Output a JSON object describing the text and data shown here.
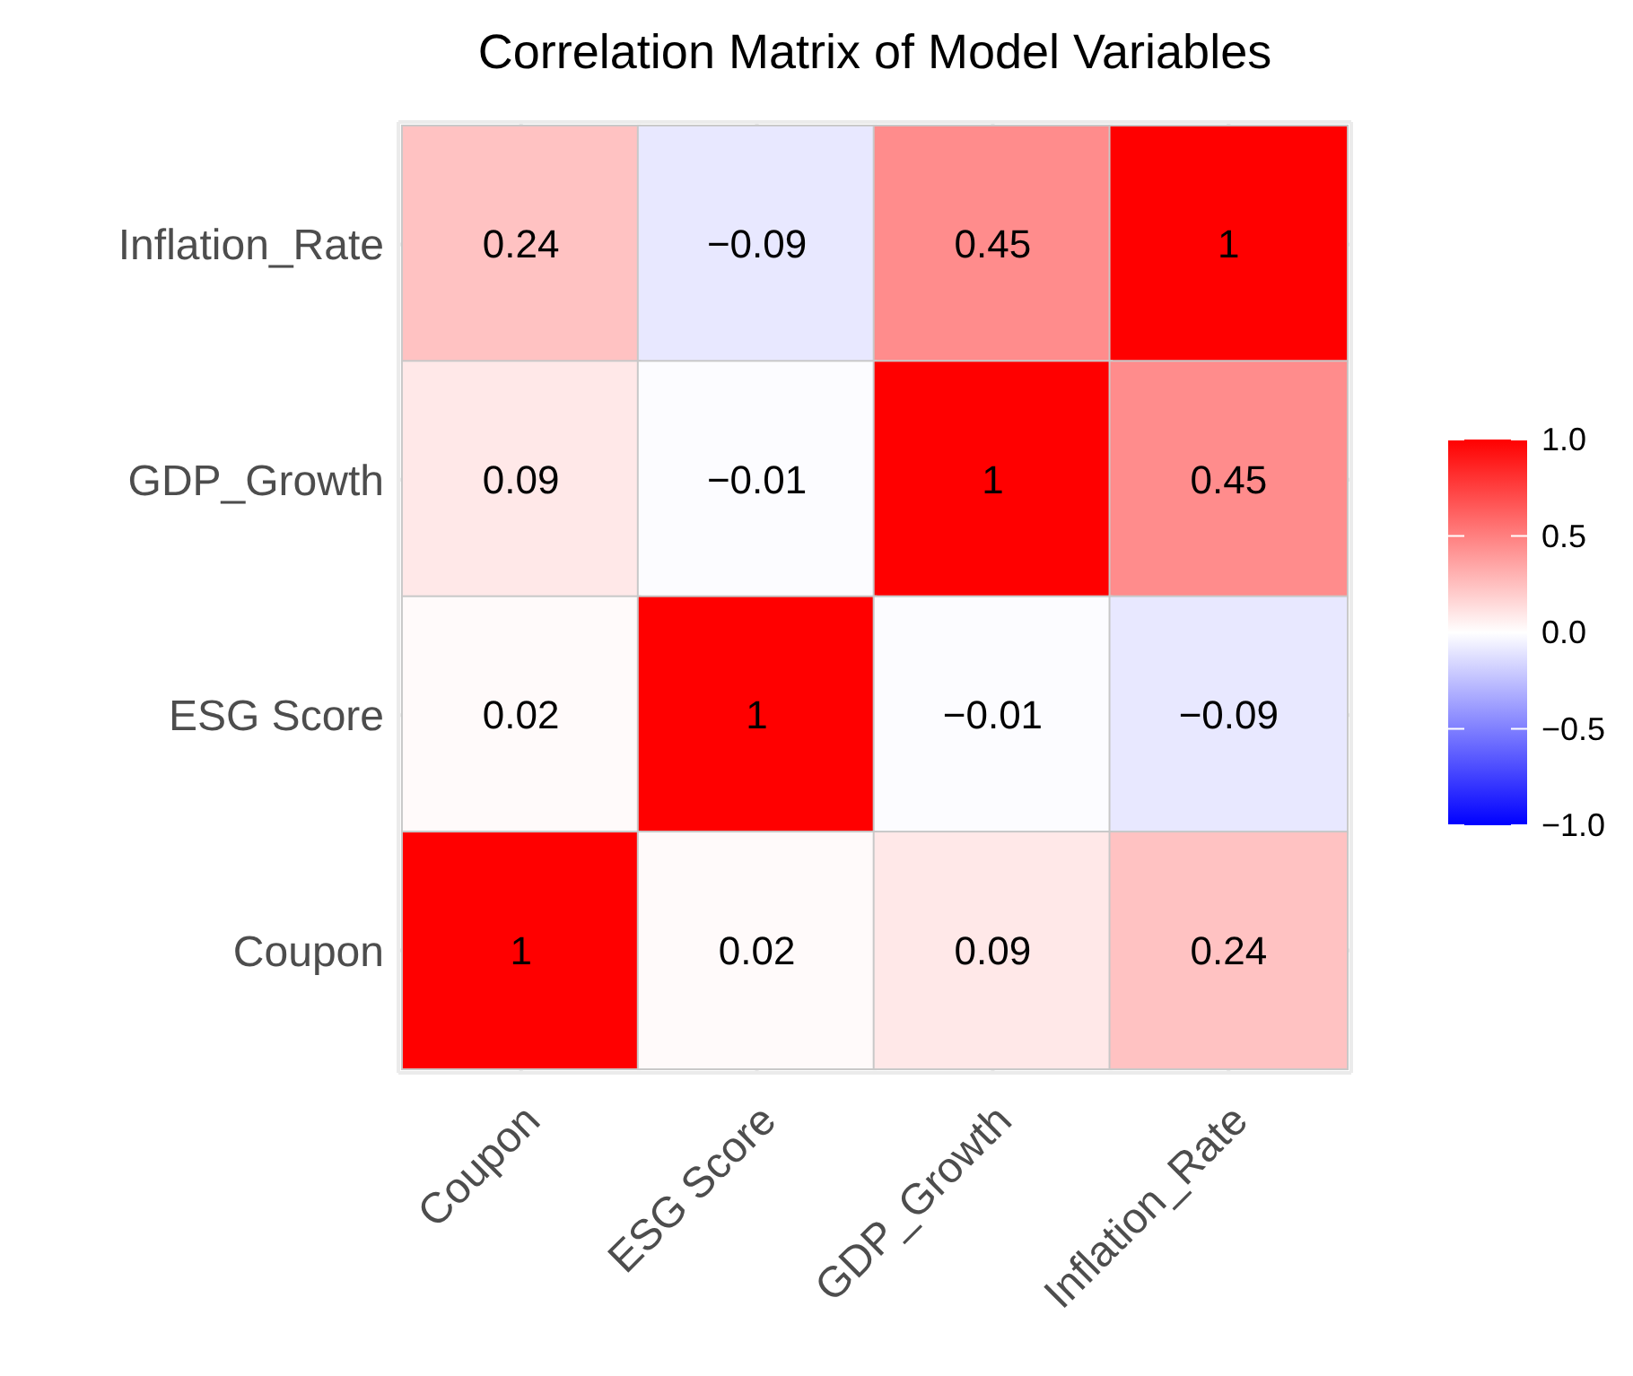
{
  "chart_data": {
    "type": "heatmap",
    "title": "Correlation Matrix of Model Variables",
    "categories": [
      "Coupon",
      "ESG Score",
      "GDP_Growth",
      "Inflation_Rate"
    ],
    "y_categories": [
      "Inflation_Rate",
      "GDP_Growth",
      "ESG Score",
      "Coupon"
    ],
    "cells": [
      [
        0.24,
        -0.09,
        0.45,
        1
      ],
      [
        0.09,
        -0.01,
        1,
        0.45
      ],
      [
        0.02,
        1,
        -0.01,
        -0.09
      ],
      [
        1,
        0.02,
        0.09,
        0.24
      ]
    ],
    "cell_labels": [
      [
        "0.24",
        "−0.09",
        "0.45",
        "1"
      ],
      [
        "0.09",
        "−0.01",
        "1",
        "0.45"
      ],
      [
        "0.02",
        "1",
        "−0.01",
        "−0.09"
      ],
      [
        "1",
        "0.02",
        "0.09",
        "0.24"
      ]
    ],
    "colors": [
      "#0000ff",
      "#ffffff",
      "#ff0000"
    ],
    "clim": [
      -1,
      1
    ],
    "cticks": [
      {
        "value": 1,
        "label": "1.0"
      },
      {
        "value": 0.5,
        "label": "0.5"
      },
      {
        "value": 0,
        "label": "0.0"
      },
      {
        "value": -0.5,
        "label": "−0.5"
      },
      {
        "value": -1,
        "label": "−1.0"
      }
    ],
    "grid": true
  }
}
